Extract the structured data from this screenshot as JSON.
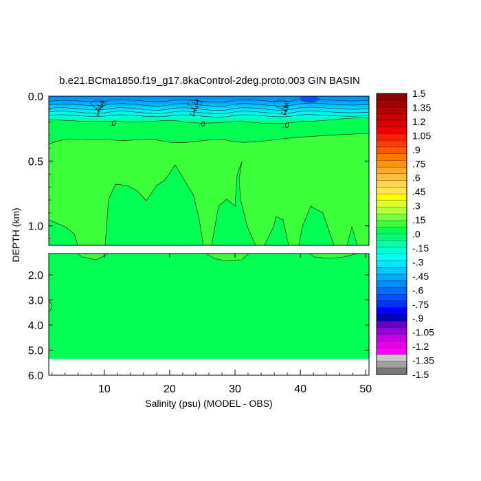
{
  "chart_data": {
    "type": "heatmap",
    "title": "b.e21.BCma1850.f19_g17.8kaControl-2deg.proto.003 GIN BASIN",
    "xlabel": "Salinity (psu) (MODEL - OBS)",
    "ylabel": "DEPTH (km)",
    "xlim": [
      1.5,
      50.5
    ],
    "x_ticks": [
      "10",
      "20",
      "30",
      "40",
      "50"
    ],
    "upper_panel": {
      "ylim": [
        0.0,
        1.15
      ],
      "y_ticks": [
        "0.0",
        "0.5",
        "1.0"
      ]
    },
    "lower_panel": {
      "ylim": [
        1.15,
        6.0
      ],
      "y_ticks": [
        "2.0",
        "3.0",
        "4.0",
        "5.0",
        "6.0"
      ],
      "no_data_below_km": 5.35
    },
    "contour_labels": [
      "-3",
      "-2",
      "-1",
      "-3",
      "-2",
      "-1",
      "-3",
      "-2",
      "-1",
      ".0",
      ".0",
      ".0"
    ],
    "colorbar": {
      "levels": [
        "1.5",
        "1.35",
        "1.2",
        "1.05",
        ".9",
        ".75",
        ".6",
        ".45",
        ".3",
        ".15",
        ".0",
        "-.15",
        "-.3",
        "-.45",
        "-.6",
        "-.75",
        "-.9",
        "-1.05",
        "-1.2",
        "-1.35",
        "-1.5"
      ],
      "colors": [
        "#8b0000",
        "#a00000",
        "#b40000",
        "#c80000",
        "#dc0000",
        "#f00000",
        "#ff1e00",
        "#ff3c00",
        "#ff5a00",
        "#ff7800",
        "#ff9600",
        "#ffaa28",
        "#ffbe3c",
        "#ffd250",
        "#ffe650",
        "#ffff00",
        "#dcff28",
        "#b4ff3c",
        "#78ff3c",
        "#3cff3c",
        "#00ff50",
        "#00ff78",
        "#00ffaa",
        "#00ffd2",
        "#00ffff",
        "#00e6ff",
        "#00c8ff",
        "#00aaff",
        "#008cff",
        "#006eff",
        "#0050ff",
        "#0032ff",
        "#0000ff",
        "#0000c8",
        "#6400c8",
        "#9600dc",
        "#c800e6",
        "#e600e6",
        "#ff00ff",
        "#c8c8c8",
        "#a0a0a0",
        "#787878"
      ],
      "colors_comment_free": true
    },
    "field_colors": {
      "background": "#00ff50",
      "plume": "#3cff3c",
      "surface_scale": [
        "#00ffaa",
        "#00ffd2",
        "#00ffff",
        "#00e6ff",
        "#00c8ff",
        "#00aaff",
        "#008cff",
        "#006eff"
      ],
      "no_data": "#ffffff"
    }
  }
}
